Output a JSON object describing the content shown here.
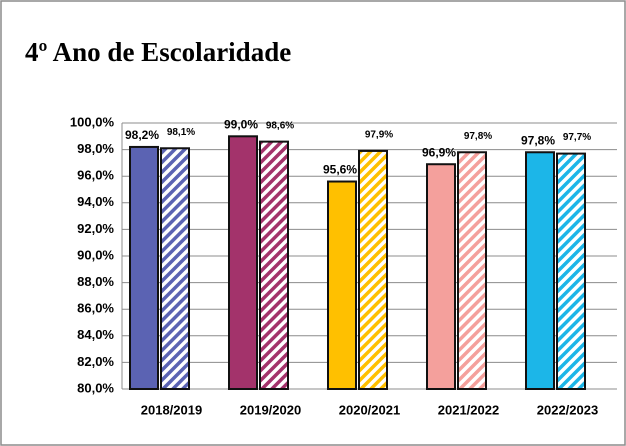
{
  "chart_data": {
    "type": "bar",
    "title": "4º Ano de Escolaridade",
    "categories": [
      "2018/2019",
      "2019/2020",
      "2020/2021",
      "2021/2022",
      "2022/2023"
    ],
    "colors": [
      "#5b63b3",
      "#a3336b",
      "#ffc000",
      "#f4a09c",
      "#1cb6e8"
    ],
    "series": [
      {
        "values": [
          98.2,
          99.0,
          95.6,
          96.9,
          97.8
        ],
        "value_labels": [
          "98,2%",
          "99,0%",
          "95,6%",
          "96,9%",
          "97,8%"
        ],
        "pattern": "solid"
      },
      {
        "values": [
          98.1,
          98.6,
          97.9,
          97.8,
          97.7
        ],
        "value_labels": [
          "98,1%",
          "98,6%",
          "97,9%",
          "97,8%",
          "97,7%"
        ],
        "pattern": "striped"
      }
    ],
    "ylim": [
      80,
      100
    ],
    "yticks": [
      {
        "value": 80,
        "label": "80,0%"
      },
      {
        "value": 82,
        "label": "82,0%"
      },
      {
        "value": 84,
        "label": "84,0%"
      },
      {
        "value": 86,
        "label": "86,0%"
      },
      {
        "value": 88,
        "label": "88,0%"
      },
      {
        "value": 90,
        "label": "90,0%"
      },
      {
        "value": 92,
        "label": "92,0%"
      },
      {
        "value": 94,
        "label": "94,0%"
      },
      {
        "value": 96,
        "label": "96,0%"
      },
      {
        "value": 98,
        "label": "98,0%"
      },
      {
        "value": 100,
        "label": "100,0%"
      }
    ],
    "grid": true
  }
}
